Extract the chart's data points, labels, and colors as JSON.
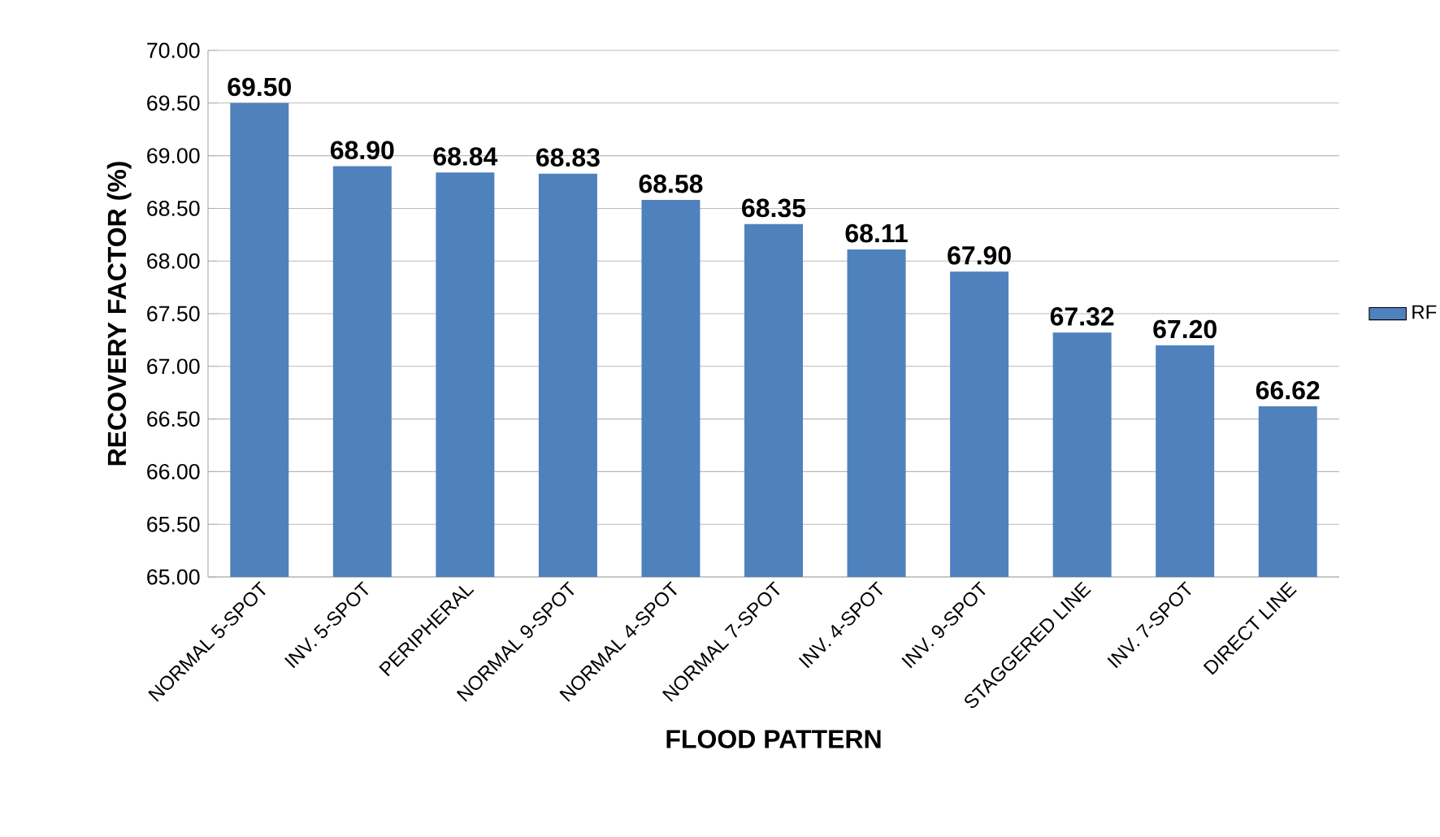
{
  "chart_data": {
    "type": "bar",
    "xlabel": "FLOOD PATTERN",
    "ylabel": "RECOVERY FACTOR (%)",
    "categories": [
      "NORMAL 5-SPOT",
      "INV. 5-SPOT",
      "PERIPHERAL",
      "NORMAL 9-SPOT",
      "NORMAL 4-SPOT",
      "NORMAL 7-SPOT",
      "INV. 4-SPOT",
      "INV. 9-SPOT",
      "STAGGERED LINE",
      "INV. 7-SPOT",
      "DIRECT LINE"
    ],
    "series": [
      {
        "name": "RF",
        "color": "#4f81bd",
        "values": [
          69.5,
          68.9,
          68.84,
          68.83,
          68.58,
          68.35,
          68.11,
          67.9,
          67.32,
          67.2,
          66.62
        ],
        "value_labels": [
          "69.50",
          "68.90",
          "68.84",
          "68.83",
          "68.58",
          "68.35",
          "68.11",
          "67.90",
          "67.32",
          "67.20",
          "66.62"
        ]
      }
    ],
    "ylim": [
      65,
      70
    ],
    "yticks": [
      {
        "value": 65,
        "label": "65.00"
      },
      {
        "value": 65.5,
        "label": "65.50"
      },
      {
        "value": 66,
        "label": "66.00"
      },
      {
        "value": 66.5,
        "label": "66.50"
      },
      {
        "value": 67,
        "label": "67.00"
      },
      {
        "value": 67.5,
        "label": "67.50"
      },
      {
        "value": 68,
        "label": "68.00"
      },
      {
        "value": 68.5,
        "label": "68.50"
      },
      {
        "value": 69,
        "label": "69.00"
      },
      {
        "value": 69.5,
        "label": "69.50"
      },
      {
        "value": 70,
        "label": "70.00"
      }
    ],
    "grid": "y",
    "legend": "right"
  }
}
